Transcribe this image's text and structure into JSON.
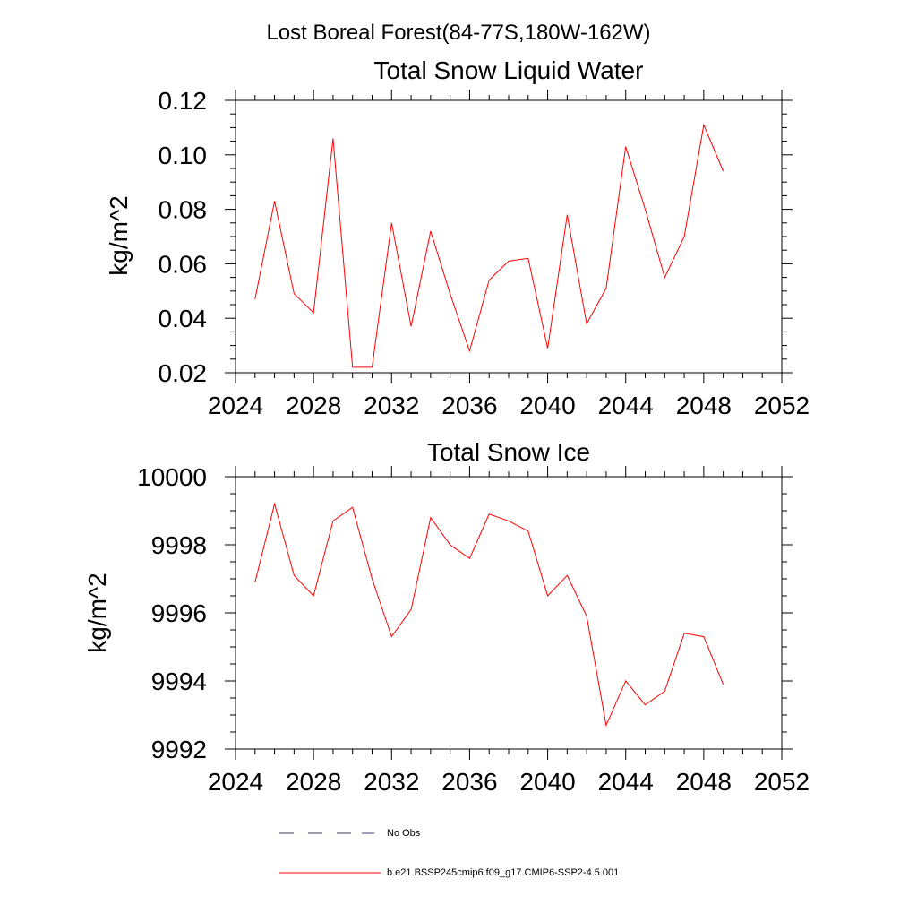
{
  "figure": {
    "title": "Lost Boreal Forest(84-77S,180W-162W)"
  },
  "chart_data": [
    {
      "type": "line",
      "title": "Total Snow Liquid Water",
      "xlabel": "",
      "ylabel": "kg/m^2",
      "xlim": [
        2024,
        2052
      ],
      "ylim": [
        0.02,
        0.12
      ],
      "x_ticks": [
        2024,
        2028,
        2032,
        2036,
        2040,
        2044,
        2048,
        2052
      ],
      "y_ticks": [
        "0.02",
        "0.04",
        "0.06",
        "0.08",
        "0.10",
        "0.12"
      ],
      "x": [
        2025,
        2026,
        2027,
        2028,
        2029,
        2030,
        2031,
        2032,
        2033,
        2034,
        2035,
        2036,
        2037,
        2038,
        2039,
        2040,
        2041,
        2042,
        2043,
        2044,
        2045,
        2046,
        2047,
        2048,
        2049
      ],
      "series": [
        {
          "name": "b.e21.BSSP245cmip6.f09_g17.CMIP6-SSP2-4.5.001",
          "color": "#ff0000",
          "values": [
            0.047,
            0.083,
            0.049,
            0.042,
            0.106,
            0.022,
            0.022,
            0.075,
            0.037,
            0.072,
            0.049,
            0.028,
            0.054,
            0.061,
            0.062,
            0.029,
            0.078,
            0.038,
            0.051,
            0.103,
            0.08,
            0.055,
            0.07,
            0.111,
            0.094
          ]
        }
      ]
    },
    {
      "type": "line",
      "title": "Total Snow Ice",
      "xlabel": "",
      "ylabel": "kg/m^2",
      "xlim": [
        2024,
        2052
      ],
      "ylim": [
        9992,
        10000
      ],
      "x_ticks": [
        2024,
        2028,
        2032,
        2036,
        2040,
        2044,
        2048,
        2052
      ],
      "y_ticks": [
        "9992",
        "9994",
        "9996",
        "9998",
        "10000"
      ],
      "x": [
        2025,
        2026,
        2027,
        2028,
        2029,
        2030,
        2031,
        2032,
        2033,
        2034,
        2035,
        2036,
        2037,
        2038,
        2039,
        2040,
        2041,
        2042,
        2043,
        2044,
        2045,
        2046,
        2047,
        2048,
        2049
      ],
      "series": [
        {
          "name": "b.e21.BSSP245cmip6.f09_g17.CMIP6-SSP2-4.5.001",
          "color": "#ff0000",
          "values": [
            9996.9,
            9999.2,
            9997.1,
            9996.5,
            9998.7,
            9999.1,
            9997.0,
            9995.3,
            9996.1,
            9998.8,
            9998.0,
            9997.6,
            9998.9,
            9998.7,
            9998.4,
            9996.5,
            9997.1,
            9995.9,
            9992.7,
            9994.0,
            9993.3,
            9993.7,
            9995.4,
            9995.3,
            9993.9
          ]
        }
      ]
    }
  ],
  "legend": {
    "placement": "bottom-center",
    "entries": [
      {
        "label": "No Obs",
        "color": "#3a3a7a",
        "style": "dashed"
      },
      {
        "label": "b.e21.BSSP245cmip6.f09_g17.CMIP6-SSP2-4.5.001",
        "color": "#ff0000",
        "style": "solid"
      }
    ]
  }
}
